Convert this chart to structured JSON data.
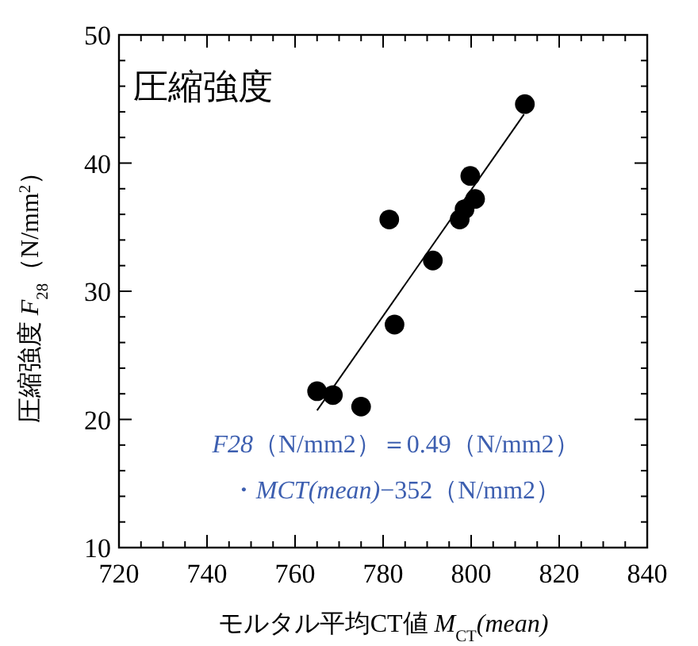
{
  "chart_data": {
    "type": "scatter",
    "title": "圧縮強度",
    "xlabel": "モルタル平均CT値 *M*$_{CT}$*(mean)*",
    "ylabel": "圧縮強度 *F*$_{28}$（N/mm$^{2}$）",
    "annotations": [
      "*F28*（N/mm2）＝0.49（N/mm2）",
      "・*MCT(mean)*−352（N/mm2）"
    ],
    "xlim": [
      720,
      840
    ],
    "xticks": [
      720,
      {
        "value": 725,
        "label": null
      },
      {
        "value": 730,
        "label": null
      },
      {
        "value": 735,
        "label": null
      },
      740,
      {
        "value": 745,
        "label": null
      },
      {
        "value": 750,
        "label": null
      },
      {
        "value": 755,
        "label": null
      },
      760,
      {
        "value": 765,
        "label": null
      },
      {
        "value": 770,
        "label": null
      },
      {
        "value": 775,
        "label": null
      },
      780,
      {
        "value": 785,
        "label": null
      },
      {
        "value": 790,
        "label": null
      },
      {
        "value": 795,
        "label": null
      },
      800,
      {
        "value": 805,
        "label": null
      },
      {
        "value": 810,
        "label": null
      },
      {
        "value": 815,
        "label": null
      },
      820,
      {
        "value": 825,
        "label": null
      },
      {
        "value": 830,
        "label": null
      },
      {
        "value": 835,
        "label": null
      },
      840
    ],
    "ylim": [
      10,
      50
    ],
    "yticks": [
      10,
      {
        "value": 12,
        "label": null
      },
      {
        "value": 14,
        "label": null
      },
      {
        "value": 16,
        "label": null
      },
      {
        "value": 18,
        "label": null
      },
      20,
      {
        "value": 22,
        "label": null
      },
      {
        "value": 24,
        "label": null
      },
      {
        "value": 26,
        "label": null
      },
      {
        "value": 28,
        "label": null
      },
      30,
      {
        "value": 32,
        "label": null
      },
      {
        "value": 34,
        "label": null
      },
      {
        "value": 36,
        "label": null
      },
      {
        "value": 38,
        "label": null
      },
      40,
      {
        "value": 42,
        "label": null
      },
      {
        "value": 44,
        "label": null
      },
      {
        "value": 46,
        "label": null
      },
      {
        "value": 48,
        "label": null
      },
      50
    ],
    "grid": false,
    "marker": "circle",
    "series": [
      {
        "color": "#000000",
        "x": [
          812.2,
          799.8,
          800.9,
          798.5,
          797.4,
          781.4,
          791.3,
          782.6,
          765.0,
          768.6,
          775.0
        ],
        "values": [
          44.6,
          39.0,
          37.2,
          36.4,
          35.6,
          35.6,
          32.4,
          27.4,
          22.2,
          21.9,
          21.0
        ]
      },
      {
        "type": "line",
        "color": "#000000",
        "marker": "none",
        "line_style": "solid",
        "x": [
          765,
          812
        ],
        "values": [
          20.7,
          43.8
        ]
      }
    ]
  }
}
